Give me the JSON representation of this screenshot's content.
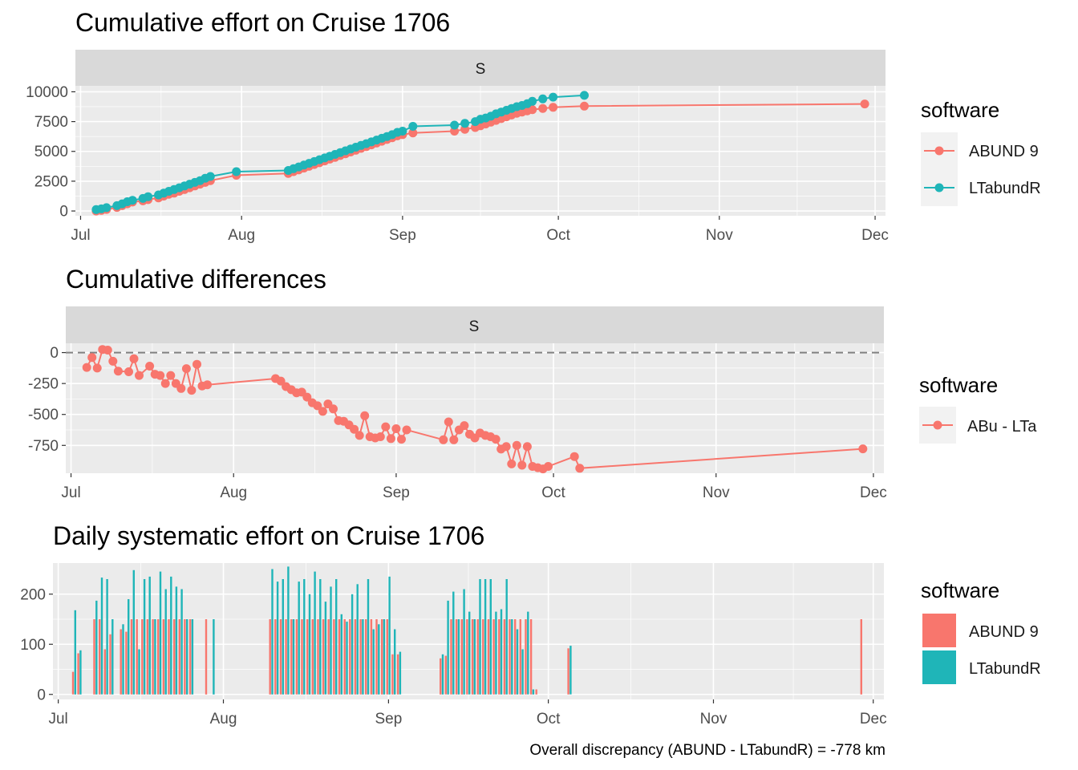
{
  "panels": {
    "cumulative": {
      "title": "Cumulative effort on Cruise 1706",
      "strip": "S"
    },
    "differences": {
      "title": "Cumulative differences",
      "strip": "S"
    },
    "daily": {
      "title": "Daily systematic effort on Cruise 1706"
    }
  },
  "caption": "Overall discrepancy (ABUND - LTabundR) = -778 km",
  "colors": {
    "abund": "#F8766D",
    "ltabundr": "#1FB5B8",
    "panel_bg": "#EBEBEB",
    "strip_bg": "#D9D9D9",
    "grid": "#FFFFFF"
  },
  "legends": {
    "cumulative": {
      "title": "software",
      "items": [
        "ABUND 9",
        "LTabundR"
      ]
    },
    "differences": {
      "title": "software",
      "items": [
        "ABu - LTa"
      ]
    },
    "daily": {
      "title": "software",
      "items": [
        "ABUND 9",
        "LTabundR"
      ]
    }
  },
  "chart_data": [
    {
      "type": "line",
      "title": "Cumulative effort on Cruise 1706",
      "facet": "S",
      "x_ticks": [
        "Jul",
        "Aug",
        "Sep",
        "Oct",
        "Nov",
        "Dec"
      ],
      "xlim": [
        "2017-06-30",
        "2017-12-03"
      ],
      "y_ticks": [
        0,
        2500,
        5000,
        7500,
        10000
      ],
      "ylim": [
        -400,
        10500
      ],
      "series": [
        {
          "name": "ABUND 9",
          "x": [
            "2017-07-04",
            "2017-07-05",
            "2017-07-06",
            "2017-07-08",
            "2017-07-09",
            "2017-07-10",
            "2017-07-11",
            "2017-07-13",
            "2017-07-14",
            "2017-07-16",
            "2017-07-17",
            "2017-07-18",
            "2017-07-19",
            "2017-07-20",
            "2017-07-21",
            "2017-07-22",
            "2017-07-23",
            "2017-07-24",
            "2017-07-25",
            "2017-07-26",
            "2017-07-31",
            "2017-08-10",
            "2017-08-11",
            "2017-08-12",
            "2017-08-13",
            "2017-08-14",
            "2017-08-15",
            "2017-08-16",
            "2017-08-17",
            "2017-08-18",
            "2017-08-19",
            "2017-08-20",
            "2017-08-21",
            "2017-08-22",
            "2017-08-23",
            "2017-08-24",
            "2017-08-25",
            "2017-08-26",
            "2017-08-27",
            "2017-08-28",
            "2017-08-29",
            "2017-08-30",
            "2017-08-31",
            "2017-09-01",
            "2017-09-03",
            "2017-09-11",
            "2017-09-13",
            "2017-09-15",
            "2017-09-16",
            "2017-09-17",
            "2017-09-18",
            "2017-09-19",
            "2017-09-20",
            "2017-09-21",
            "2017-09-22",
            "2017-09-23",
            "2017-09-24",
            "2017-09-25",
            "2017-09-26",
            "2017-09-28",
            "2017-09-30",
            "2017-10-06",
            "2017-11-29"
          ],
          "y": [
            0,
            50,
            130,
            300,
            450,
            600,
            750,
            850,
            950,
            1100,
            1250,
            1400,
            1500,
            1650,
            1800,
            1950,
            2100,
            2250,
            2400,
            2550,
            3000,
            3150,
            3300,
            3450,
            3600,
            3750,
            3900,
            4050,
            4200,
            4350,
            4500,
            4650,
            4800,
            4950,
            5100,
            5250,
            5400,
            5550,
            5700,
            5850,
            6000,
            6150,
            6300,
            6400,
            6550,
            6700,
            6850,
            7000,
            7150,
            7300,
            7450,
            7600,
            7750,
            7900,
            8050,
            8200,
            8300,
            8400,
            8500,
            8600,
            8700,
            8800,
            8980
          ]
        },
        {
          "name": "LTabundR",
          "x": [
            "2017-07-04",
            "2017-07-05",
            "2017-07-06",
            "2017-07-08",
            "2017-07-09",
            "2017-07-10",
            "2017-07-11",
            "2017-07-13",
            "2017-07-14",
            "2017-07-16",
            "2017-07-17",
            "2017-07-18",
            "2017-07-19",
            "2017-07-20",
            "2017-07-21",
            "2017-07-22",
            "2017-07-23",
            "2017-07-24",
            "2017-07-25",
            "2017-07-26",
            "2017-07-31",
            "2017-08-10",
            "2017-08-11",
            "2017-08-12",
            "2017-08-13",
            "2017-08-14",
            "2017-08-15",
            "2017-08-16",
            "2017-08-17",
            "2017-08-18",
            "2017-08-19",
            "2017-08-20",
            "2017-08-21",
            "2017-08-22",
            "2017-08-23",
            "2017-08-24",
            "2017-08-25",
            "2017-08-26",
            "2017-08-27",
            "2017-08-28",
            "2017-08-29",
            "2017-08-30",
            "2017-08-31",
            "2017-09-01",
            "2017-09-03",
            "2017-09-11",
            "2017-09-13",
            "2017-09-15",
            "2017-09-16",
            "2017-09-17",
            "2017-09-18",
            "2017-09-19",
            "2017-09-20",
            "2017-09-21",
            "2017-09-22",
            "2017-09-23",
            "2017-09-24",
            "2017-09-25",
            "2017-09-26",
            "2017-09-28",
            "2017-09-30",
            "2017-10-06"
          ],
          "y": [
            120,
            180,
            280,
            450,
            600,
            780,
            900,
            1050,
            1200,
            1350,
            1500,
            1650,
            1800,
            1950,
            2100,
            2250,
            2400,
            2550,
            2750,
            2900,
            3300,
            3400,
            3550,
            3700,
            3850,
            4000,
            4150,
            4300,
            4450,
            4600,
            4750,
            4900,
            5050,
            5200,
            5350,
            5500,
            5650,
            5800,
            5950,
            6100,
            6250,
            6400,
            6600,
            6700,
            7100,
            7200,
            7350,
            7500,
            7700,
            7800,
            7950,
            8150,
            8300,
            8450,
            8600,
            8750,
            8850,
            9000,
            9200,
            9400,
            9550,
            9700
          ]
        }
      ]
    },
    {
      "type": "line",
      "title": "Cumulative differences",
      "facet": "S",
      "x_ticks": [
        "Jul",
        "Aug",
        "Sep",
        "Oct",
        "Nov",
        "Dec"
      ],
      "xlim": [
        "2017-06-30",
        "2017-12-03"
      ],
      "y_ticks": [
        0,
        -250,
        -500,
        -750
      ],
      "ylim": [
        -975,
        75
      ],
      "reference_line": 0,
      "series": [
        {
          "name": "ABu - LTa",
          "x": [
            "2017-07-04",
            "2017-07-05",
            "2017-07-06",
            "2017-07-07",
            "2017-07-08",
            "2017-07-09",
            "2017-07-10",
            "2017-07-12",
            "2017-07-13",
            "2017-07-14",
            "2017-07-16",
            "2017-07-17",
            "2017-07-18",
            "2017-07-19",
            "2017-07-20",
            "2017-07-21",
            "2017-07-22",
            "2017-07-23",
            "2017-07-24",
            "2017-07-25",
            "2017-07-26",
            "2017-07-27",
            "2017-08-09",
            "2017-08-10",
            "2017-08-11",
            "2017-08-12",
            "2017-08-13",
            "2017-08-14",
            "2017-08-15",
            "2017-08-16",
            "2017-08-17",
            "2017-08-18",
            "2017-08-19",
            "2017-08-20",
            "2017-08-21",
            "2017-08-22",
            "2017-08-23",
            "2017-08-24",
            "2017-08-25",
            "2017-08-26",
            "2017-08-27",
            "2017-08-28",
            "2017-08-29",
            "2017-08-30",
            "2017-08-31",
            "2017-09-01",
            "2017-09-02",
            "2017-09-03",
            "2017-09-10",
            "2017-09-11",
            "2017-09-12",
            "2017-09-13",
            "2017-09-14",
            "2017-09-15",
            "2017-09-16",
            "2017-09-17",
            "2017-09-18",
            "2017-09-19",
            "2017-09-20",
            "2017-09-21",
            "2017-09-22",
            "2017-09-23",
            "2017-09-24",
            "2017-09-25",
            "2017-09-26",
            "2017-09-27",
            "2017-09-28",
            "2017-09-29",
            "2017-09-30",
            "2017-10-05",
            "2017-10-06",
            "2017-11-29"
          ],
          "y": [
            -120,
            -40,
            -125,
            25,
            20,
            -70,
            -150,
            -155,
            -50,
            -185,
            -110,
            -175,
            -185,
            -250,
            -185,
            -250,
            -290,
            -130,
            -305,
            -95,
            -270,
            -260,
            -210,
            -230,
            -275,
            -300,
            -325,
            -320,
            -360,
            -405,
            -430,
            -475,
            -415,
            -455,
            -550,
            -555,
            -585,
            -620,
            -670,
            -510,
            -680,
            -690,
            -680,
            -600,
            -695,
            -615,
            -700,
            -625,
            -705,
            -560,
            -705,
            -625,
            -590,
            -660,
            -690,
            -650,
            -670,
            -680,
            -700,
            -780,
            -760,
            -900,
            -750,
            -910,
            -760,
            -920,
            -930,
            -940,
            -920,
            -840,
            -935,
            -778
          ]
        }
      ]
    },
    {
      "type": "bar",
      "title": "Daily systematic effort on Cruise 1706",
      "x_ticks": [
        "Jul",
        "Aug",
        "Sep",
        "Oct",
        "Nov",
        "Dec"
      ],
      "xlim": [
        "2017-06-30",
        "2017-12-03"
      ],
      "y_ticks": [
        0,
        100,
        200
      ],
      "ylim": [
        -10,
        262
      ],
      "dates": [
        "2017-07-04",
        "2017-07-05",
        "2017-07-06",
        "2017-07-08",
        "2017-07-09",
        "2017-07-10",
        "2017-07-11",
        "2017-07-13",
        "2017-07-14",
        "2017-07-15",
        "2017-07-16",
        "2017-07-17",
        "2017-07-18",
        "2017-07-19",
        "2017-07-20",
        "2017-07-21",
        "2017-07-22",
        "2017-07-23",
        "2017-07-24",
        "2017-07-25",
        "2017-07-26",
        "2017-07-29",
        "2017-07-30",
        "2017-08-10",
        "2017-08-11",
        "2017-08-12",
        "2017-08-13",
        "2017-08-14",
        "2017-08-15",
        "2017-08-16",
        "2017-08-17",
        "2017-08-18",
        "2017-08-19",
        "2017-08-20",
        "2017-08-21",
        "2017-08-22",
        "2017-08-23",
        "2017-08-24",
        "2017-08-25",
        "2017-08-26",
        "2017-08-27",
        "2017-08-28",
        "2017-08-29",
        "2017-08-30",
        "2017-08-31",
        "2017-09-01",
        "2017-09-02",
        "2017-09-03",
        "2017-09-05",
        "2017-09-11",
        "2017-09-12",
        "2017-09-13",
        "2017-09-14",
        "2017-09-15",
        "2017-09-16",
        "2017-09-17",
        "2017-09-18",
        "2017-09-19",
        "2017-09-20",
        "2017-09-21",
        "2017-09-22",
        "2017-09-23",
        "2017-09-24",
        "2017-09-25",
        "2017-09-26",
        "2017-09-27",
        "2017-09-28",
        "2017-09-29",
        "2017-10-05",
        "2017-10-06",
        "2017-11-29"
      ],
      "series": [
        {
          "name": "ABUND 9",
          "values": [
            45,
            82,
            0,
            150,
            150,
            90,
            120,
            130,
            125,
            150,
            150,
            150,
            150,
            150,
            150,
            150,
            150,
            150,
            150,
            150,
            150,
            150,
            0,
            150,
            150,
            150,
            150,
            150,
            150,
            150,
            150,
            150,
            150,
            150,
            150,
            150,
            150,
            150,
            150,
            150,
            150,
            150,
            150,
            150,
            150,
            150,
            80,
            80,
            0,
            72,
            77,
            150,
            150,
            150,
            150,
            150,
            150,
            150,
            150,
            150,
            150,
            150,
            150,
            150,
            150,
            150,
            150,
            10,
            92,
            0,
            150
          ]
        },
        {
          "name": "LTabundR",
          "values": [
            168,
            88,
            0,
            187,
            233,
            230,
            150,
            140,
            190,
            248,
            90,
            230,
            235,
            150,
            245,
            210,
            235,
            215,
            210,
            150,
            150,
            0,
            150,
            250,
            225,
            230,
            255,
            150,
            225,
            230,
            200,
            245,
            230,
            185,
            215,
            230,
            160,
            145,
            200,
            220,
            150,
            230,
            130,
            140,
            150,
            235,
            130,
            85,
            0,
            80,
            187,
            205,
            150,
            210,
            165,
            150,
            230,
            230,
            230,
            165,
            170,
            230,
            150,
            130,
            90,
            165,
            10,
            0,
            97,
            0,
            0
          ]
        }
      ]
    }
  ]
}
